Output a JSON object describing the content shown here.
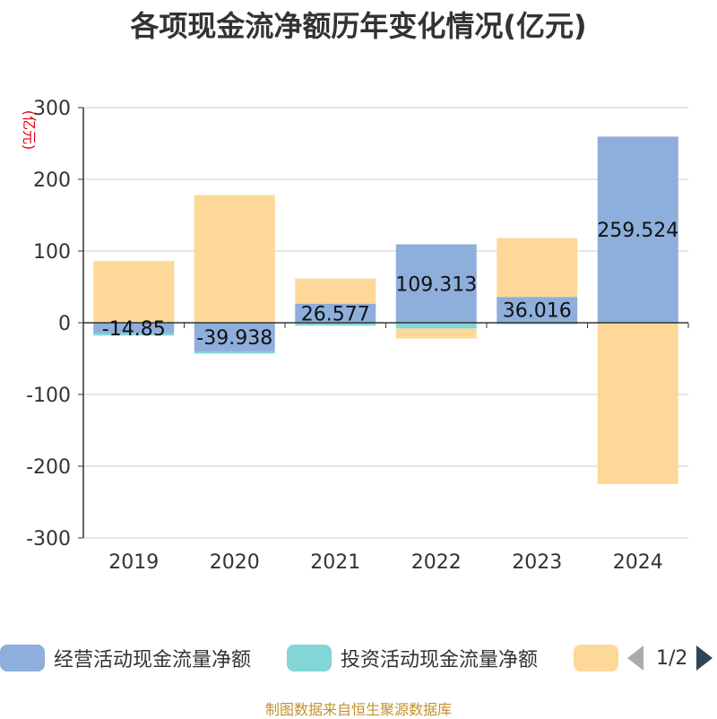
{
  "title": "各项现金流净额历年变化情况(亿元)",
  "source": "制图数据来自恒生聚源数据库",
  "legend": {
    "items": [
      {
        "label": "经营活动现金流量净额",
        "color": "#8eaedb"
      },
      {
        "label": "投资活动现金流量净额",
        "color": "#82d6d6"
      },
      {
        "label": "",
        "color": "#fdd898"
      }
    ],
    "page": "1/2"
  },
  "chart_data": {
    "type": "bar",
    "stacked": true,
    "categories": [
      "2019",
      "2020",
      "2021",
      "2022",
      "2023",
      "2024"
    ],
    "ylabel": "(亿元)",
    "ylim": [
      -300,
      300
    ],
    "yticks": [
      300,
      200,
      100,
      0,
      -100,
      -200,
      -300
    ],
    "grid": true,
    "legend_position": "bottom",
    "series": [
      {
        "name": "经营活动现金流量净额",
        "color": "#8eaedb",
        "values": [
          -14.85,
          -39.938,
          26.577,
          109.313,
          36.016,
          259.524
        ],
        "labels": [
          "-14.85",
          "-39.938",
          "26.577",
          "109.313",
          "36.016",
          "259.524"
        ]
      },
      {
        "name": "投资活动现金流量净额",
        "color": "#82d6d6",
        "values": [
          -3,
          -3,
          -4,
          -8,
          -2,
          -1
        ]
      },
      {
        "color": "#fdd898",
        "values": [
          86,
          178,
          35,
          -14,
          82,
          -224
        ]
      }
    ]
  }
}
